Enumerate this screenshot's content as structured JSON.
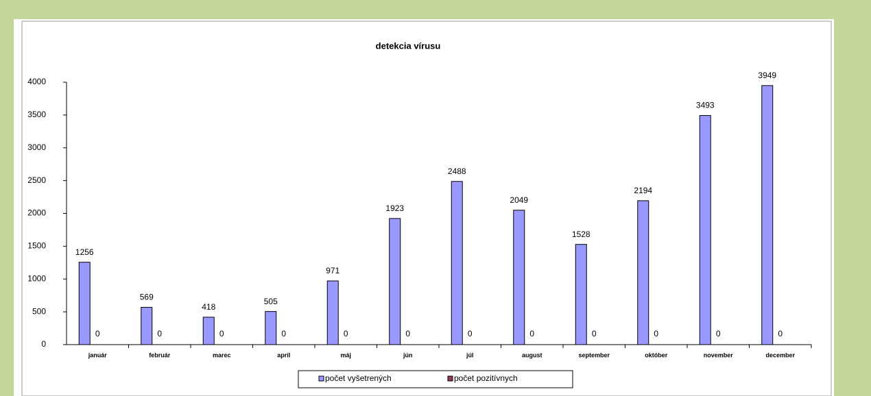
{
  "chart_data": {
    "type": "bar",
    "title": "detekcia vírusu",
    "categories": [
      "január",
      "február",
      "marec",
      "apríl",
      "máj",
      "jún",
      "júl",
      "august",
      "september",
      "október",
      "november",
      "december"
    ],
    "series": [
      {
        "name": "počet vyšetrených",
        "color": "#9999ff",
        "values": [
          1256,
          569,
          418,
          505,
          971,
          1923,
          2488,
          2049,
          1528,
          2194,
          3493,
          3949
        ]
      },
      {
        "name": "počet pozitívnych",
        "color": "#993366",
        "values": [
          0,
          0,
          0,
          0,
          0,
          0,
          0,
          0,
          0,
          0,
          0,
          0
        ]
      }
    ],
    "ylim": [
      0,
      4000
    ],
    "yticks": [
      0,
      500,
      1000,
      1500,
      2000,
      2500,
      3000,
      3500,
      4000
    ],
    "grid": false
  }
}
